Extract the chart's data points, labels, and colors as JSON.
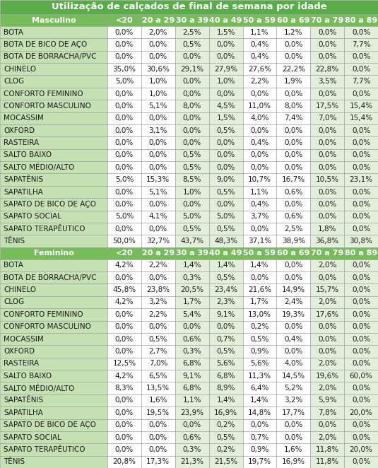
{
  "title": "Utilização de calçados de final de semana por idade",
  "age_cols": [
    "<20",
    "20 a 29",
    "30 a 39",
    "40 a 49",
    "50 a 59",
    "60 a 69",
    "70 a 79",
    "80 a 89"
  ],
  "masculino_header": "Masculino",
  "feminino_header": "Feminino",
  "masculino_rows": [
    [
      "BOTA",
      "0,0%",
      "2,0%",
      "2,5%",
      "1,5%",
      "1,1%",
      "1,2%",
      "0,0%",
      "0,0%"
    ],
    [
      "BOTA DE BICO DE AÇO",
      "0,0%",
      "0,0%",
      "0,5%",
      "0,0%",
      "0,4%",
      "0,0%",
      "0,0%",
      "7,7%"
    ],
    [
      "BOTA DE BORRACHA/PVC",
      "0,0%",
      "0,0%",
      "0,0%",
      "0,0%",
      "0,4%",
      "0,0%",
      "0,0%",
      "0,0%"
    ],
    [
      "CHINELO",
      "35,0%",
      "30,6%",
      "29,1%",
      "27,9%",
      "27,6%",
      "22,2%",
      "22,8%",
      "0,0%"
    ],
    [
      "CLOG",
      "5,0%",
      "1,0%",
      "0,0%",
      "1,0%",
      "2,2%",
      "1,9%",
      "3,5%",
      "7,7%"
    ],
    [
      "CONFORTO FEMININO",
      "0,0%",
      "1,0%",
      "0,0%",
      "0,0%",
      "0,0%",
      "0,0%",
      "0,0%",
      "0,0%"
    ],
    [
      "CONFORTO MASCULINO",
      "0,0%",
      "5,1%",
      "8,0%",
      "4,5%",
      "11,0%",
      "8,0%",
      "17,5%",
      "15,4%"
    ],
    [
      "MOCASSIM",
      "0,0%",
      "0,0%",
      "0,0%",
      "1,5%",
      "4,0%",
      "7,4%",
      "7,0%",
      "15,4%"
    ],
    [
      "OXFORD",
      "0,0%",
      "3,1%",
      "0,0%",
      "0,5%",
      "0,0%",
      "0,0%",
      "0,0%",
      "0,0%"
    ],
    [
      "RASTEIRA",
      "0,0%",
      "0,0%",
      "0,0%",
      "0,0%",
      "0,4%",
      "0,0%",
      "0,0%",
      "0,0%"
    ],
    [
      "SALTO BAIXO",
      "0,0%",
      "0,0%",
      "0,5%",
      "0,0%",
      "0,0%",
      "0,0%",
      "0,0%",
      "0,0%"
    ],
    [
      "SALTO MÉDIO/ALTO",
      "0,0%",
      "0,0%",
      "0,5%",
      "0,0%",
      "0,0%",
      "0,0%",
      "0,0%",
      "0,0%"
    ],
    [
      "SAPATÊNIS",
      "5,0%",
      "15,3%",
      "8,5%",
      "9,0%",
      "10,7%",
      "16,7%",
      "10,5%",
      "23,1%"
    ],
    [
      "SAPATILHA",
      "0,0%",
      "5,1%",
      "1,0%",
      "0,5%",
      "1,1%",
      "0,6%",
      "0,0%",
      "0,0%"
    ],
    [
      "SAPATO DE BICO DE AÇO",
      "0,0%",
      "0,0%",
      "0,0%",
      "0,0%",
      "0,4%",
      "0,0%",
      "0,0%",
      "0,0%"
    ],
    [
      "SAPATO SOCIAL",
      "5,0%",
      "4,1%",
      "5,0%",
      "5,0%",
      "3,7%",
      "0,6%",
      "0,0%",
      "0,0%"
    ],
    [
      "SAPATO TERAPÊUTICO",
      "0,0%",
      "0,0%",
      "0,5%",
      "0,5%",
      "0,0%",
      "2,5%",
      "1,8%",
      "0,0%"
    ],
    [
      "TÊNIS",
      "50,0%",
      "32,7%",
      "43,7%",
      "48,3%",
      "37,1%",
      "38,9%",
      "36,8%",
      "30,8%"
    ]
  ],
  "feminino_rows": [
    [
      "BOTA",
      "4,2%",
      "2,2%",
      "1,4%",
      "1,4%",
      "1,4%",
      "0,0%",
      "2,0%",
      "0,0%"
    ],
    [
      "BOTA DE BORRACHA/PVC",
      "0,0%",
      "0,0%",
      "0,3%",
      "0,5%",
      "0,0%",
      "0,0%",
      "0,0%",
      "0,0%"
    ],
    [
      "CHINELO",
      "45,8%",
      "23,8%",
      "20,5%",
      "23,4%",
      "21,6%",
      "14,9%",
      "15,7%",
      "0,0%"
    ],
    [
      "CLOG",
      "4,2%",
      "3,2%",
      "1,7%",
      "2,3%",
      "1,7%",
      "2,4%",
      "2,0%",
      "0,0%"
    ],
    [
      "CONFORTO FEMININO",
      "0,0%",
      "2,2%",
      "5,4%",
      "9,1%",
      "13,0%",
      "19,3%",
      "17,6%",
      "0,0%"
    ],
    [
      "CONFORTO MASCULINO",
      "0,0%",
      "0,0%",
      "0,0%",
      "0,0%",
      "0,2%",
      "0,0%",
      "0,0%",
      "0,0%"
    ],
    [
      "MOCASSIM",
      "0,0%",
      "0,5%",
      "0,6%",
      "0,7%",
      "0,5%",
      "0,4%",
      "0,0%",
      "0,0%"
    ],
    [
      "OXFORD",
      "0,0%",
      "2,7%",
      "0,3%",
      "0,5%",
      "0,9%",
      "0,0%",
      "0,0%",
      "0,0%"
    ],
    [
      "RASTEIRA",
      "12,5%",
      "7,0%",
      "6,8%",
      "5,6%",
      "5,6%",
      "4,0%",
      "2,0%",
      "0,0%"
    ],
    [
      "SALTO BAIXO",
      "4,2%",
      "6,5%",
      "9,1%",
      "6,8%",
      "11,3%",
      "14,5%",
      "19,6%",
      "60,0%"
    ],
    [
      "SALTO MÉDIO/ALTO",
      "8,3%",
      "13,5%",
      "6,8%",
      "8,9%",
      "6,4%",
      "5,2%",
      "2,0%",
      "0,0%"
    ],
    [
      "SAPATÊNIS",
      "0,0%",
      "1,6%",
      "1,1%",
      "1,4%",
      "1,4%",
      "3,2%",
      "5,9%",
      "0,0%"
    ],
    [
      "SAPATILHA",
      "0,0%",
      "19,5%",
      "23,9%",
      "16,9%",
      "14,8%",
      "17,7%",
      "7,8%",
      "20,0%"
    ],
    [
      "SAPATO DE BICO DE AÇO",
      "0,0%",
      "0,0%",
      "0,0%",
      "0,2%",
      "0,0%",
      "0,0%",
      "0,0%",
      "0,0%"
    ],
    [
      "SAPATO SOCIAL",
      "0,0%",
      "0,0%",
      "0,6%",
      "0,5%",
      "0,7%",
      "0,0%",
      "2,0%",
      "0,0%"
    ],
    [
      "SAPATO TERAPÊUTICO",
      "0,0%",
      "0,0%",
      "0,3%",
      "0,2%",
      "0,9%",
      "1,6%",
      "11,8%",
      "20,0%"
    ],
    [
      "TÊNIS",
      "20,8%",
      "17,3%",
      "21,3%",
      "21,5%",
      "19,7%",
      "16,9%",
      "11,8%",
      "0,0%"
    ]
  ],
  "title_bg": "#5aac4b",
  "subheader_bg": "#76bc5a",
  "label_col_bg": "#c5e0b3",
  "col_bg_group1": "#FFFFFF",
  "col_bg_group2": "#e2efda",
  "header_fg": "#FFFFFF",
  "row_fg": "#1a1a1a",
  "title_fg": "#FFFFFF",
  "title_fontsize": 9.5,
  "header_fontsize": 8.0,
  "cell_fontsize": 7.5,
  "label_fontsize": 7.5
}
